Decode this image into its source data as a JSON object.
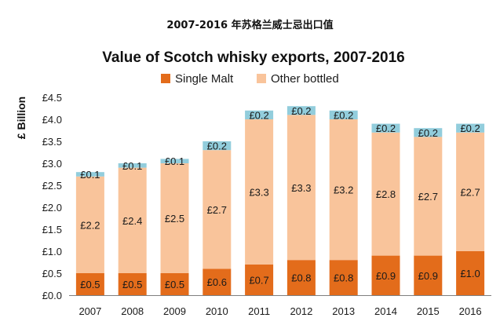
{
  "page": {
    "supertitle": "2007-2016 年苏格兰威士忌出口值"
  },
  "colors": {
    "single_malt": "#e36c1b",
    "other_bottled": "#f9c49b",
    "top_segment": "#92cddc",
    "axis": "#7f7f7f"
  },
  "chart_data": {
    "type": "bar",
    "stacked": true,
    "title": "Value of Scotch whisky exports, 2007-2016",
    "xlabel": "",
    "ylabel": "£ Billion",
    "ylim": [
      0,
      4.5
    ],
    "ytick_step": 0.5,
    "ytick_labels": [
      "£0.0",
      "£0.5",
      "£1.0",
      "£1.5",
      "£2.0",
      "£2.5",
      "£3.0",
      "£3.5",
      "£4.0",
      "£4.5"
    ],
    "grid": false,
    "legend_position": "top-center",
    "categories": [
      "2007",
      "2008",
      "2009",
      "2010",
      "2011",
      "2012",
      "2013",
      "2014",
      "2015",
      "2016"
    ],
    "series": [
      {
        "name": "Single Malt",
        "values": [
          0.5,
          0.5,
          0.5,
          0.6,
          0.7,
          0.8,
          0.8,
          0.9,
          0.9,
          1.0
        ],
        "labels": [
          "£0.5",
          "£0.5",
          "£0.5",
          "£0.6",
          "£0.7",
          "£0.8",
          "£0.8",
          "£0.9",
          "£0.9",
          "£1.0"
        ]
      },
      {
        "name": "Other bottled",
        "values": [
          2.2,
          2.4,
          2.5,
          2.7,
          3.3,
          3.3,
          3.2,
          2.8,
          2.7,
          2.7
        ],
        "labels": [
          "£2.2",
          "£2.4",
          "£2.5",
          "£2.7",
          "£3.3",
          "£3.3",
          "£3.2",
          "£2.8",
          "£2.7",
          "£2.7"
        ]
      },
      {
        "name": "",
        "values": [
          0.1,
          0.1,
          0.1,
          0.2,
          0.2,
          0.2,
          0.2,
          0.2,
          0.2,
          0.2
        ],
        "labels": [
          "£0.1",
          "£0.1",
          "£0.1",
          "£0.2",
          "£0.2",
          "£0.2",
          "£0.2",
          "£0.2",
          "£0.2",
          "£0.2"
        ]
      }
    ]
  }
}
